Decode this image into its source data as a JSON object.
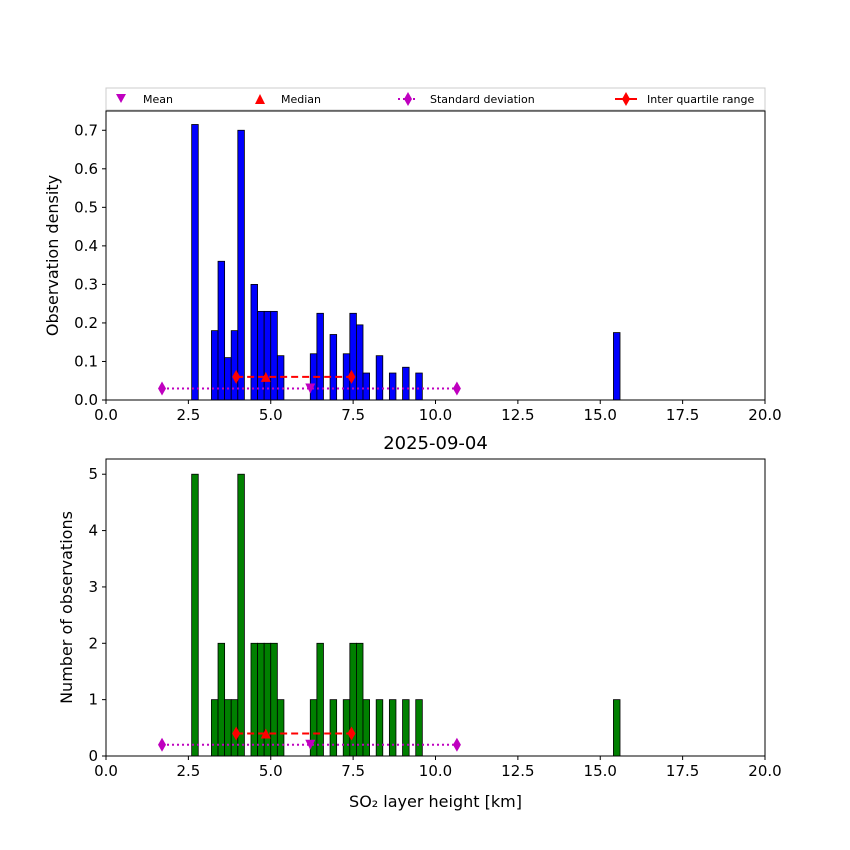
{
  "chart_data": [
    {
      "type": "bar",
      "title": "",
      "ylabel": "Observation density",
      "xlabel": "",
      "xlim": [
        0,
        20
      ],
      "ylim": [
        0,
        0.75
      ],
      "xticks": [
        "0.0",
        "2.5",
        "5.0",
        "7.5",
        "10.0",
        "12.5",
        "15.0",
        "17.5",
        "20.0"
      ],
      "yticks": [
        "0.0",
        "0.1",
        "0.2",
        "0.3",
        "0.4",
        "0.5",
        "0.6",
        "0.7"
      ],
      "color": "#0000ff",
      "bin_width": 0.2,
      "x": [
        2.7,
        3.3,
        3.5,
        3.7,
        3.9,
        4.1,
        4.5,
        4.7,
        4.9,
        5.1,
        5.3,
        6.3,
        6.5,
        6.9,
        7.3,
        7.5,
        7.7,
        7.9,
        8.3,
        8.7,
        9.1,
        9.5,
        15.5
      ],
      "values": [
        0.715,
        0.18,
        0.36,
        0.11,
        0.18,
        0.7,
        0.3,
        0.23,
        0.23,
        0.23,
        0.115,
        0.12,
        0.225,
        0.17,
        0.12,
        0.225,
        0.195,
        0.07,
        0.115,
        0.07,
        0.085,
        0.07,
        0.175
      ],
      "stats_y": {
        "sd": 0.03,
        "mean": 0.03,
        "iqr": 0.06,
        "median": 0.06
      }
    },
    {
      "type": "bar",
      "title": "2025-09-04",
      "ylabel": "Number of observations",
      "xlabel": "SO₂ layer height [km]",
      "xlim": [
        0,
        20
      ],
      "ylim": [
        0,
        5.27
      ],
      "xticks": [
        "0.0",
        "2.5",
        "5.0",
        "7.5",
        "10.0",
        "12.5",
        "15.0",
        "17.5",
        "20.0"
      ],
      "yticks": [
        "0",
        "1",
        "2",
        "3",
        "4",
        "5"
      ],
      "color": "#008000",
      "bin_width": 0.2,
      "x": [
        2.7,
        3.3,
        3.5,
        3.7,
        3.9,
        4.1,
        4.5,
        4.7,
        4.9,
        5.1,
        5.3,
        6.3,
        6.5,
        6.9,
        7.3,
        7.5,
        7.7,
        7.9,
        8.3,
        8.7,
        9.1,
        9.5,
        15.5
      ],
      "values": [
        5,
        1,
        2,
        1,
        1,
        5,
        2,
        2,
        2,
        2,
        1,
        1,
        2,
        1,
        1,
        2,
        2,
        1,
        1,
        1,
        1,
        1,
        1
      ],
      "stats_y": {
        "sd": 0.2,
        "mean": 0.2,
        "iqr": 0.4,
        "median": 0.4
      }
    }
  ],
  "stats": {
    "mean": 6.2,
    "median": 4.85,
    "iqr": [
      3.95,
      7.45
    ],
    "sd": [
      1.7,
      10.65
    ]
  },
  "legend": {
    "placement": "top",
    "mean": "Mean",
    "median": "Median",
    "sd": "Standard deviation",
    "iqr": "Inter quartile range"
  },
  "colors": {
    "mean": "#bf00bf",
    "median": "#ff0000",
    "sd": "#bf00bf",
    "iqr": "#ff0000"
  }
}
